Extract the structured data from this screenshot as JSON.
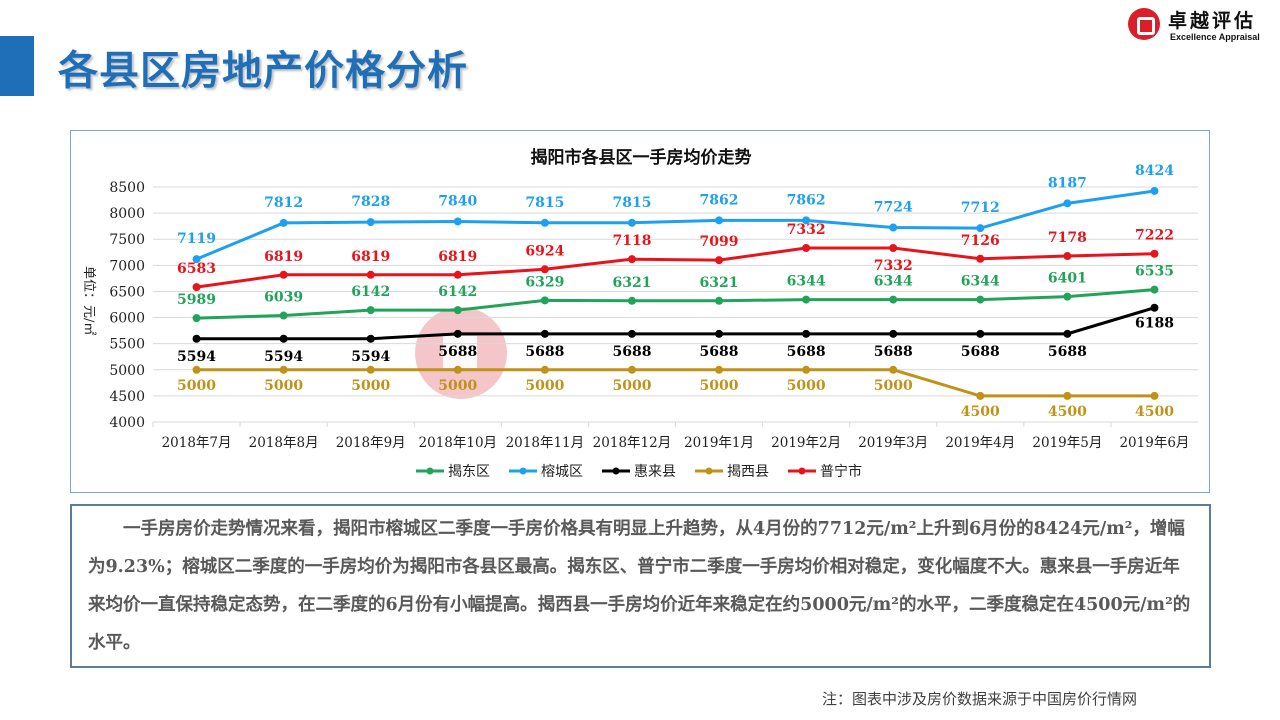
{
  "header": {
    "title": "各县区房地产价格分析"
  },
  "logo": {
    "name_cn": "卓越评估",
    "name_en": "Excellence Appraisal"
  },
  "chart_data": {
    "type": "line",
    "title": "揭阳市各县区一手房均价走势",
    "ylabel": "单位：元/㎡",
    "xlabel": "",
    "ylim": [
      4000,
      8500
    ],
    "yticks": [
      4000,
      4500,
      5000,
      5500,
      6000,
      6500,
      7000,
      7500,
      8000,
      8500
    ],
    "grid": true,
    "legend_position": "bottom",
    "categories": [
      "2018年7月",
      "2018年8月",
      "2018年9月",
      "2018年10月",
      "2018年11月",
      "2018年12月",
      "2019年1月",
      "2019年2月",
      "2019年3月",
      "2019年4月",
      "2019年5月",
      "2019年6月"
    ],
    "series": [
      {
        "name": "揭东区",
        "color": "#21a35a",
        "values": [
          5989,
          6039,
          6142,
          6142,
          6329,
          6321,
          6321,
          6344,
          6344,
          6344,
          6401,
          6535
        ]
      },
      {
        "name": "榕城区",
        "color": "#1ea0f0",
        "values": [
          7119,
          7812,
          7828,
          7840,
          7815,
          7815,
          7862,
          7862,
          7724,
          7712,
          8187,
          8424
        ]
      },
      {
        "name": "惠来县",
        "color": "#000000",
        "values": [
          5594,
          5594,
          5594,
          5688,
          5688,
          5688,
          5688,
          5688,
          5688,
          5688,
          5688,
          6188
        ]
      },
      {
        "name": "揭西县",
        "color": "#c09218",
        "values": [
          5000,
          5000,
          5000,
          5000,
          5000,
          5000,
          5000,
          5000,
          5000,
          4500,
          4500,
          4500
        ]
      },
      {
        "name": "普宁市",
        "color": "#e8141c",
        "values": [
          6583,
          6819,
          6819,
          6819,
          6924,
          7118,
          7099,
          7332,
          7332,
          7126,
          7178,
          7222
        ]
      }
    ],
    "watermark": "卓越评估 Excellence Appraisal"
  },
  "analysis": {
    "text": "一手房房价走势情况来看，揭阳市榕城区二季度一手房价格具有明显上升趋势，从4月份的7712元/m²上升到6月份的8424元/m²，增幅为9.23%；榕城区二季度的一手房均价为揭阳市各县区最高。揭东区、普宁市二季度一手房均价相对稳定，变化幅度不大。惠来县一手房近年来均价一直保持稳定态势，在二季度的6月份有小幅提高。揭西县一手房均价近年来稳定在约5000元/m²的水平，二季度稳定在4500元/m²的水平。"
  },
  "footer": {
    "note": "注：图表中涉及房价数据来源于中国房价行情网"
  }
}
